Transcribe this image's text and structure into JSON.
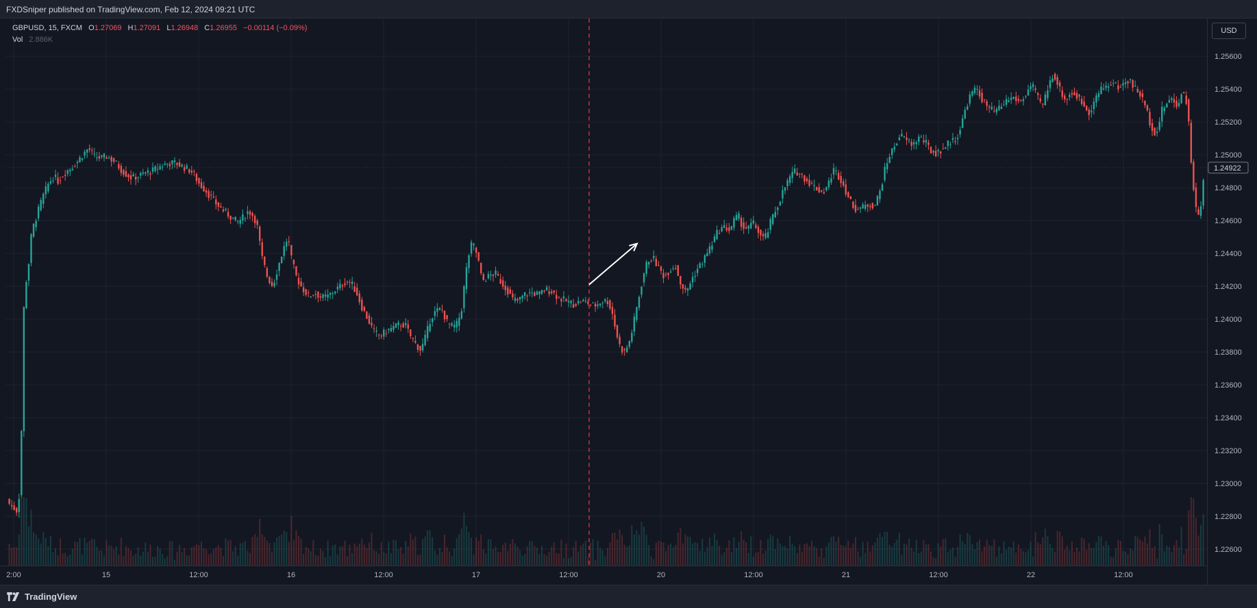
{
  "header": {
    "published": "FXDSniper published on TradingView.com, Feb 12, 2024 09:21 UTC"
  },
  "legend": {
    "symbol": "GBPUSD, 15, FXCM",
    "o_label": "O",
    "o_value": "1.27069",
    "h_label": "H",
    "h_value": "1.27091",
    "l_label": "L",
    "l_value": "1.26948",
    "c_label": "C",
    "c_value": "1.26955",
    "change": "−0.00114 (−0.09%)",
    "vol_label": "Vol",
    "vol_value": "2.886K"
  },
  "currency_label": "USD",
  "footer": {
    "brand": "TradingView"
  },
  "colors": {
    "up": "#26a69a",
    "down": "#ef5350",
    "background": "#131722",
    "grid": "#1f2330",
    "marker": "#f23645",
    "arrow": "#ffffff"
  },
  "chart_data": {
    "type": "candlestick",
    "ylim": [
      1.225,
      1.2583
    ],
    "y_ticks": [
      "1.22600",
      "1.22800",
      "1.23000",
      "1.23200",
      "1.23400",
      "1.23600",
      "1.23800",
      "1.24000",
      "1.24200",
      "1.24400",
      "1.24600",
      "1.24800",
      "1.25000",
      "1.25200",
      "1.25400",
      "1.25600"
    ],
    "x_labels": [
      "2:00",
      "15",
      "12:00",
      "16",
      "12:00",
      "17",
      "12:00",
      "20",
      "12:00",
      "21",
      "12:00",
      "22",
      "12:00"
    ],
    "last_price": "1.24922",
    "price_path": [
      [
        0,
        1.2292
      ],
      [
        0.004,
        1.2287
      ],
      [
        0.011,
        1.2283
      ],
      [
        0.014,
        1.2302
      ],
      [
        0.016,
        1.2397
      ],
      [
        0.018,
        1.2419
      ],
      [
        0.021,
        1.2432
      ],
      [
        0.024,
        1.2453
      ],
      [
        0.03,
        1.2466
      ],
      [
        0.034,
        1.2474
      ],
      [
        0.039,
        1.2482
      ],
      [
        0.044,
        1.2487
      ],
      [
        0.048,
        1.2484
      ],
      [
        0.054,
        1.2489
      ],
      [
        0.06,
        1.2492
      ],
      [
        0.066,
        1.2496
      ],
      [
        0.072,
        1.2501
      ],
      [
        0.076,
        1.2504
      ],
      [
        0.081,
        1.2499
      ],
      [
        0.088,
        1.2498
      ],
      [
        0.093,
        1.2499
      ],
      [
        0.1,
        1.2496
      ],
      [
        0.106,
        1.2491
      ],
      [
        0.111,
        1.2488
      ],
      [
        0.116,
        1.2486
      ],
      [
        0.122,
        1.2487
      ],
      [
        0.128,
        1.2489
      ],
      [
        0.134,
        1.249
      ],
      [
        0.142,
        1.2493
      ],
      [
        0.149,
        1.2495
      ],
      [
        0.156,
        1.2495
      ],
      [
        0.162,
        1.2493
      ],
      [
        0.168,
        1.2491
      ],
      [
        0.172,
        1.2489
      ],
      [
        0.177,
        1.2483
      ],
      [
        0.184,
        1.2478
      ],
      [
        0.192,
        1.2471
      ],
      [
        0.2,
        1.2466
      ],
      [
        0.207,
        1.2462
      ],
      [
        0.213,
        1.2459
      ],
      [
        0.218,
        1.2462
      ],
      [
        0.223,
        1.2466
      ],
      [
        0.228,
        1.2462
      ],
      [
        0.231,
        1.2456
      ],
      [
        0.235,
        1.2438
      ],
      [
        0.24,
        1.2426
      ],
      [
        0.245,
        1.242
      ],
      [
        0.25,
        1.2432
      ],
      [
        0.255,
        1.2443
      ],
      [
        0.259,
        1.245
      ],
      [
        0.262,
        1.2437
      ],
      [
        0.267,
        1.2425
      ],
      [
        0.272,
        1.2419
      ],
      [
        0.278,
        1.2414
      ],
      [
        0.284,
        1.2416
      ],
      [
        0.29,
        1.2413
      ],
      [
        0.296,
        1.2414
      ],
      [
        0.301,
        1.2417
      ],
      [
        0.307,
        1.242
      ],
      [
        0.312,
        1.2423
      ],
      [
        0.317,
        1.2422
      ],
      [
        0.322,
        1.2416
      ],
      [
        0.327,
        1.2407
      ],
      [
        0.333,
        1.2399
      ],
      [
        0.338,
        1.2392
      ],
      [
        0.344,
        1.239
      ],
      [
        0.35,
        1.2393
      ],
      [
        0.356,
        1.2395
      ],
      [
        0.362,
        1.2397
      ],
      [
        0.367,
        1.2396
      ],
      [
        0.371,
        1.239
      ],
      [
        0.376,
        1.2385
      ],
      [
        0.381,
        1.2381
      ],
      [
        0.386,
        1.2391
      ],
      [
        0.39,
        1.2401
      ],
      [
        0.395,
        1.2405
      ],
      [
        0.4,
        1.2406
      ],
      [
        0.405,
        1.2398
      ],
      [
        0.41,
        1.2395
      ],
      [
        0.414,
        1.2397
      ],
      [
        0.418,
        1.2405
      ],
      [
        0.421,
        1.2422
      ],
      [
        0.424,
        1.2437
      ],
      [
        0.428,
        1.2447
      ],
      [
        0.433,
        1.2438
      ],
      [
        0.437,
        1.2423
      ],
      [
        0.443,
        1.2426
      ],
      [
        0.449,
        1.2428
      ],
      [
        0.455,
        1.2422
      ],
      [
        0.46,
        1.2418
      ],
      [
        0.465,
        1.2412
      ],
      [
        0.47,
        1.2411
      ],
      [
        0.476,
        1.2415
      ],
      [
        0.482,
        1.2416
      ],
      [
        0.489,
        1.2415
      ],
      [
        0.495,
        1.2418
      ],
      [
        0.501,
        1.2417
      ],
      [
        0.507,
        1.2413
      ],
      [
        0.514,
        1.2411
      ],
      [
        0.521,
        1.2409
      ],
      [
        0.528,
        1.2411
      ],
      [
        0.534,
        1.241
      ],
      [
        0.54,
        1.2408
      ],
      [
        0.547,
        1.2411
      ],
      [
        0.552,
        1.2411
      ],
      [
        0.556,
        1.2405
      ],
      [
        0.56,
        1.2392
      ],
      [
        0.564,
        1.2382
      ],
      [
        0.568,
        1.238
      ],
      [
        0.573,
        1.2388
      ],
      [
        0.577,
        1.2401
      ],
      [
        0.581,
        1.2414
      ],
      [
        0.585,
        1.2427
      ],
      [
        0.589,
        1.2436
      ],
      [
        0.594,
        1.2437
      ],
      [
        0.599,
        1.2431
      ],
      [
        0.604,
        1.2426
      ],
      [
        0.609,
        1.243
      ],
      [
        0.614,
        1.2433
      ],
      [
        0.619,
        1.2422
      ],
      [
        0.624,
        1.2416
      ],
      [
        0.629,
        1.2424
      ],
      [
        0.634,
        1.243
      ],
      [
        0.639,
        1.2435
      ],
      [
        0.644,
        1.2441
      ],
      [
        0.648,
        1.2446
      ],
      [
        0.652,
        1.2452
      ],
      [
        0.656,
        1.2455
      ],
      [
        0.66,
        1.2456
      ],
      [
        0.664,
        1.2454
      ],
      [
        0.668,
        1.246
      ],
      [
        0.672,
        1.2463
      ],
      [
        0.676,
        1.2456
      ],
      [
        0.681,
        1.2455
      ],
      [
        0.685,
        1.2459
      ],
      [
        0.69,
        1.2454
      ],
      [
        0.694,
        1.2449
      ],
      [
        0.698,
        1.2451
      ],
      [
        0.702,
        1.246
      ],
      [
        0.708,
        1.2469
      ],
      [
        0.713,
        1.2478
      ],
      [
        0.719,
        1.2486
      ],
      [
        0.724,
        1.249
      ],
      [
        0.728,
        1.2489
      ],
      [
        0.734,
        1.2485
      ],
      [
        0.739,
        1.2482
      ],
      [
        0.745,
        1.2479
      ],
      [
        0.75,
        1.2477
      ],
      [
        0.755,
        1.2483
      ],
      [
        0.759,
        1.2491
      ],
      [
        0.762,
        1.2489
      ],
      [
        0.766,
        1.2485
      ],
      [
        0.77,
        1.2479
      ],
      [
        0.775,
        1.2471
      ],
      [
        0.78,
        1.2467
      ],
      [
        0.786,
        1.2468
      ],
      [
        0.792,
        1.247
      ],
      [
        0.797,
        1.2469
      ],
      [
        0.802,
        1.2478
      ],
      [
        0.806,
        1.249
      ],
      [
        0.81,
        1.2499
      ],
      [
        0.815,
        1.2505
      ],
      [
        0.82,
        1.2512
      ],
      [
        0.826,
        1.2509
      ],
      [
        0.832,
        1.2506
      ],
      [
        0.838,
        1.2511
      ],
      [
        0.844,
        1.2507
      ],
      [
        0.849,
        1.2502
      ],
      [
        0.854,
        1.2501
      ],
      [
        0.86,
        1.2504
      ],
      [
        0.866,
        1.2508
      ],
      [
        0.872,
        1.251
      ],
      [
        0.876,
        1.2517
      ],
      [
        0.881,
        1.253
      ],
      [
        0.886,
        1.2538
      ],
      [
        0.891,
        1.254
      ],
      [
        0.896,
        1.2533
      ],
      [
        0.902,
        1.2528
      ],
      [
        0.907,
        1.2526
      ],
      [
        0.913,
        1.2529
      ],
      [
        0.918,
        1.2533
      ],
      [
        0.924,
        1.2535
      ],
      [
        0.93,
        1.2532
      ],
      [
        0.936,
        1.2537
      ],
      [
        0.941,
        1.2543
      ],
      [
        0.946,
        1.2535
      ],
      [
        0.951,
        1.253
      ],
      [
        0.956,
        1.2541
      ],
      [
        0.961,
        1.255
      ],
      [
        0.966,
        1.2541
      ],
      [
        0.972,
        1.2533
      ],
      [
        0.977,
        1.2538
      ],
      [
        0.982,
        1.2536
      ],
      [
        0.988,
        1.2531
      ],
      [
        0.994,
        1.2526
      ],
      [
        1.0,
        1.2535
      ]
    ],
    "right_segment": [
      [
        0.0,
        1.2535
      ],
      [
        0.05,
        1.254
      ],
      [
        0.1,
        1.2542
      ],
      [
        0.15,
        1.2544
      ],
      [
        0.2,
        1.2541
      ],
      [
        0.25,
        1.2543
      ],
      [
        0.3,
        1.2546
      ],
      [
        0.35,
        1.2541
      ],
      [
        0.4,
        1.2537
      ],
      [
        0.45,
        1.253
      ],
      [
        0.5,
        1.2518
      ],
      [
        0.55,
        1.2512
      ],
      [
        0.6,
        1.2527
      ],
      [
        0.65,
        1.2532
      ],
      [
        0.7,
        1.2534
      ],
      [
        0.75,
        1.2529
      ],
      [
        0.78,
        1.2539
      ],
      [
        0.82,
        1.2535
      ],
      [
        0.85,
        1.2516
      ],
      [
        0.875,
        1.2489
      ],
      [
        0.9,
        1.2473
      ],
      [
        0.925,
        1.2461
      ],
      [
        0.95,
        1.2464
      ],
      [
        0.97,
        1.248
      ],
      [
        1.0,
        1.2492
      ]
    ],
    "annotations": [
      {
        "type": "vertical-dashed-line",
        "x_label": "12:00",
        "x_after_index": 6
      },
      {
        "type": "arrow",
        "from": 1.2421,
        "to": 1.2446
      }
    ]
  }
}
